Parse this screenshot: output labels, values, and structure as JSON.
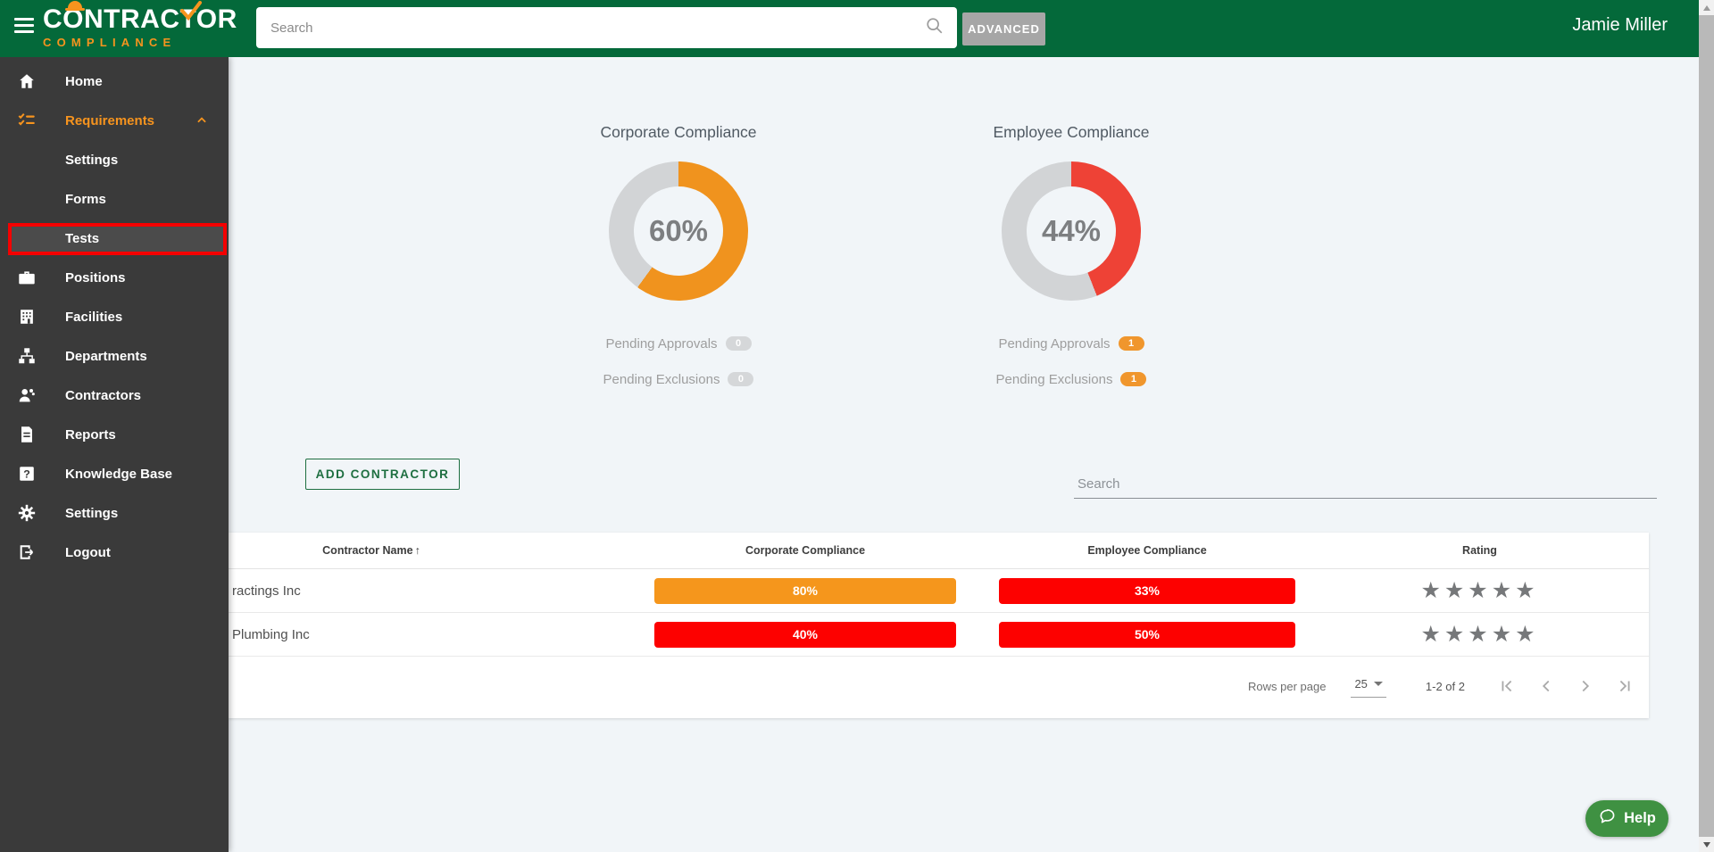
{
  "header": {
    "brand_line1": "CONTRACTOR",
    "brand_line2": "COMPLIANCE",
    "search_placeholder": "Search",
    "advanced_label": "ADVANCED",
    "user_name": "Jamie Miller",
    "header_color": "#04693A",
    "brand_accent_color": "#F7941E"
  },
  "sidebar": {
    "items": [
      {
        "label": "Home",
        "icon": "home"
      },
      {
        "label": "Requirements",
        "icon": "checklist",
        "active": true,
        "expanded": true
      },
      {
        "label": "Settings",
        "sub": true
      },
      {
        "label": "Forms",
        "sub": true
      },
      {
        "label": "Tests",
        "sub": true,
        "highlighted": true
      },
      {
        "label": "Positions",
        "icon": "briefcase"
      },
      {
        "label": "Facilities",
        "icon": "building"
      },
      {
        "label": "Departments",
        "icon": "org-chart"
      },
      {
        "label": "Contractors",
        "icon": "worker"
      },
      {
        "label": "Reports",
        "icon": "document"
      },
      {
        "label": "Knowledge Base",
        "icon": "question"
      },
      {
        "label": "Settings",
        "icon": "gear"
      },
      {
        "label": "Logout",
        "icon": "logout"
      }
    ],
    "highlight_border_color": "#f40000"
  },
  "panels": [
    {
      "title": "Corporate Compliance",
      "percent": 60,
      "percent_label": "60%",
      "color": "#F0931E",
      "track_color": "#d2d4d6",
      "rows": [
        {
          "label": "Pending Approvals",
          "count": "0",
          "badge_color": "#d5d7d9"
        },
        {
          "label": "Pending Exclusions",
          "count": "0",
          "badge_color": "#d5d7d9"
        }
      ]
    },
    {
      "title": "Employee Compliance",
      "percent": 44,
      "percent_label": "44%",
      "color": "#EE4236",
      "track_color": "#d2d4d6",
      "rows": [
        {
          "label": "Pending Approvals",
          "count": "1",
          "badge_color": "#F0962D"
        },
        {
          "label": "Pending Exclusions",
          "count": "1",
          "badge_color": "#F0962D"
        }
      ]
    }
  ],
  "toolbar": {
    "add_button_label": "ADD CONTRACTOR",
    "search_placeholder": "Search"
  },
  "table": {
    "columns": [
      "Contractor Name",
      "Corporate Compliance",
      "Employee Compliance",
      "Rating"
    ],
    "sort_column": "Contractor Name",
    "sort_direction": "asc",
    "sort_glyph": "↑",
    "rows": [
      {
        "name": "ractings Inc",
        "corporate": {
          "label": "80%",
          "color": "#F5961C"
        },
        "employee": {
          "label": "33%",
          "color": "#FD0100"
        },
        "rating_stars": 5
      },
      {
        "name": "Plumbing Inc",
        "corporate": {
          "label": "40%",
          "color": "#FD0100"
        },
        "employee": {
          "label": "50%",
          "color": "#FD0100"
        },
        "rating_stars": 5
      }
    ],
    "pagination": {
      "rows_per_page_label": "Rows per page",
      "rows_per_page_value": "25",
      "range_label": "1-2 of 2"
    }
  },
  "help": {
    "label": "Help",
    "color": "#3F9142"
  }
}
